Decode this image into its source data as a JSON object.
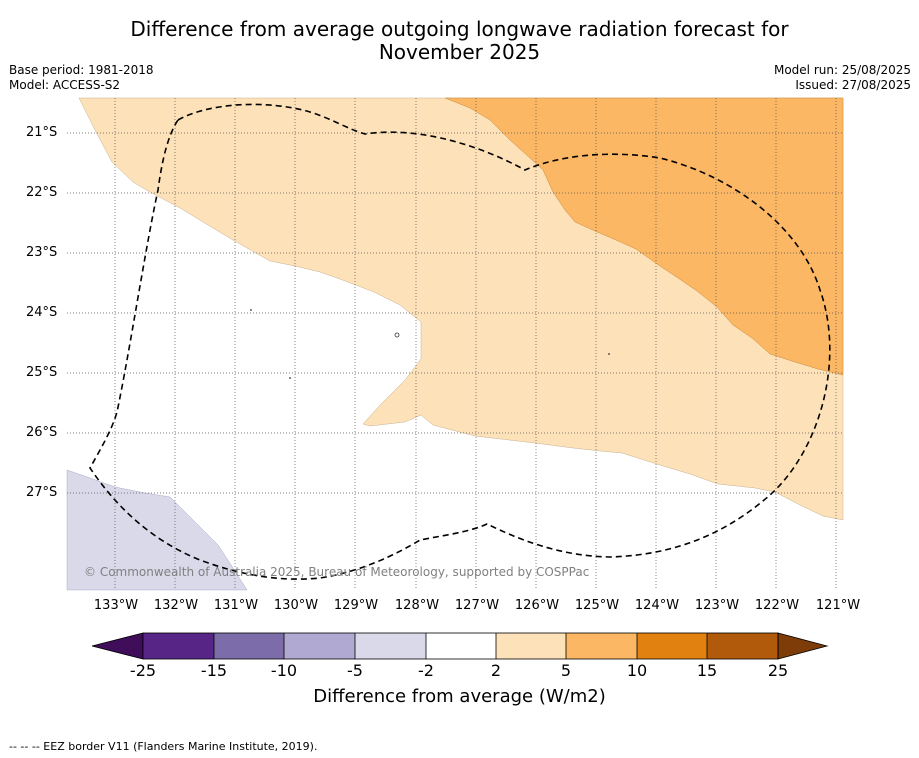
{
  "title": "Difference from average outgoing longwave radiation forecast for November 2025",
  "title_line1": "Difference from average outgoing longwave radiation forecast for",
  "title_line2": "November 2025",
  "base_period": "Base period: 1981-2018",
  "model": "Model: ACCESS-S2",
  "model_run": "Model run: 25/08/2025",
  "issued": "Issued: 27/08/2025",
  "credit": "© Commonwealth of Australia 2025, Bureau of Meteorology, supported by COSPPac",
  "footnote": "--  --  -- EEZ border V11 (Flanders Marine Institute, 2019).",
  "lat_ticks": [
    "21°S",
    "22°S",
    "23°S",
    "24°S",
    "25°S",
    "26°S",
    "27°S"
  ],
  "lon_ticks": [
    "133°W",
    "132°W",
    "131°W",
    "130°W",
    "129°W",
    "128°W",
    "127°W",
    "126°W",
    "125°W",
    "124°W",
    "123°W",
    "122°W",
    "121°W"
  ],
  "colorbar": {
    "title": "Difference from average (W/m2)",
    "tick_labels": [
      "-25",
      "-15",
      "-10",
      "-5",
      "-2",
      "2",
      "5",
      "10",
      "15",
      "25"
    ],
    "colors": [
      "#3f0d5a",
      "#562586",
      "#7c6daa",
      "#b0aad3",
      "#d9d9ea",
      "#ffffff",
      "#fde1b8",
      "#fbb763",
      "#e1810f",
      "#b25a0b",
      "#7e3c08"
    ]
  },
  "legend": {
    "eez_border": "EEZ border V11 (Flanders Marine Institute, 2019)."
  }
}
